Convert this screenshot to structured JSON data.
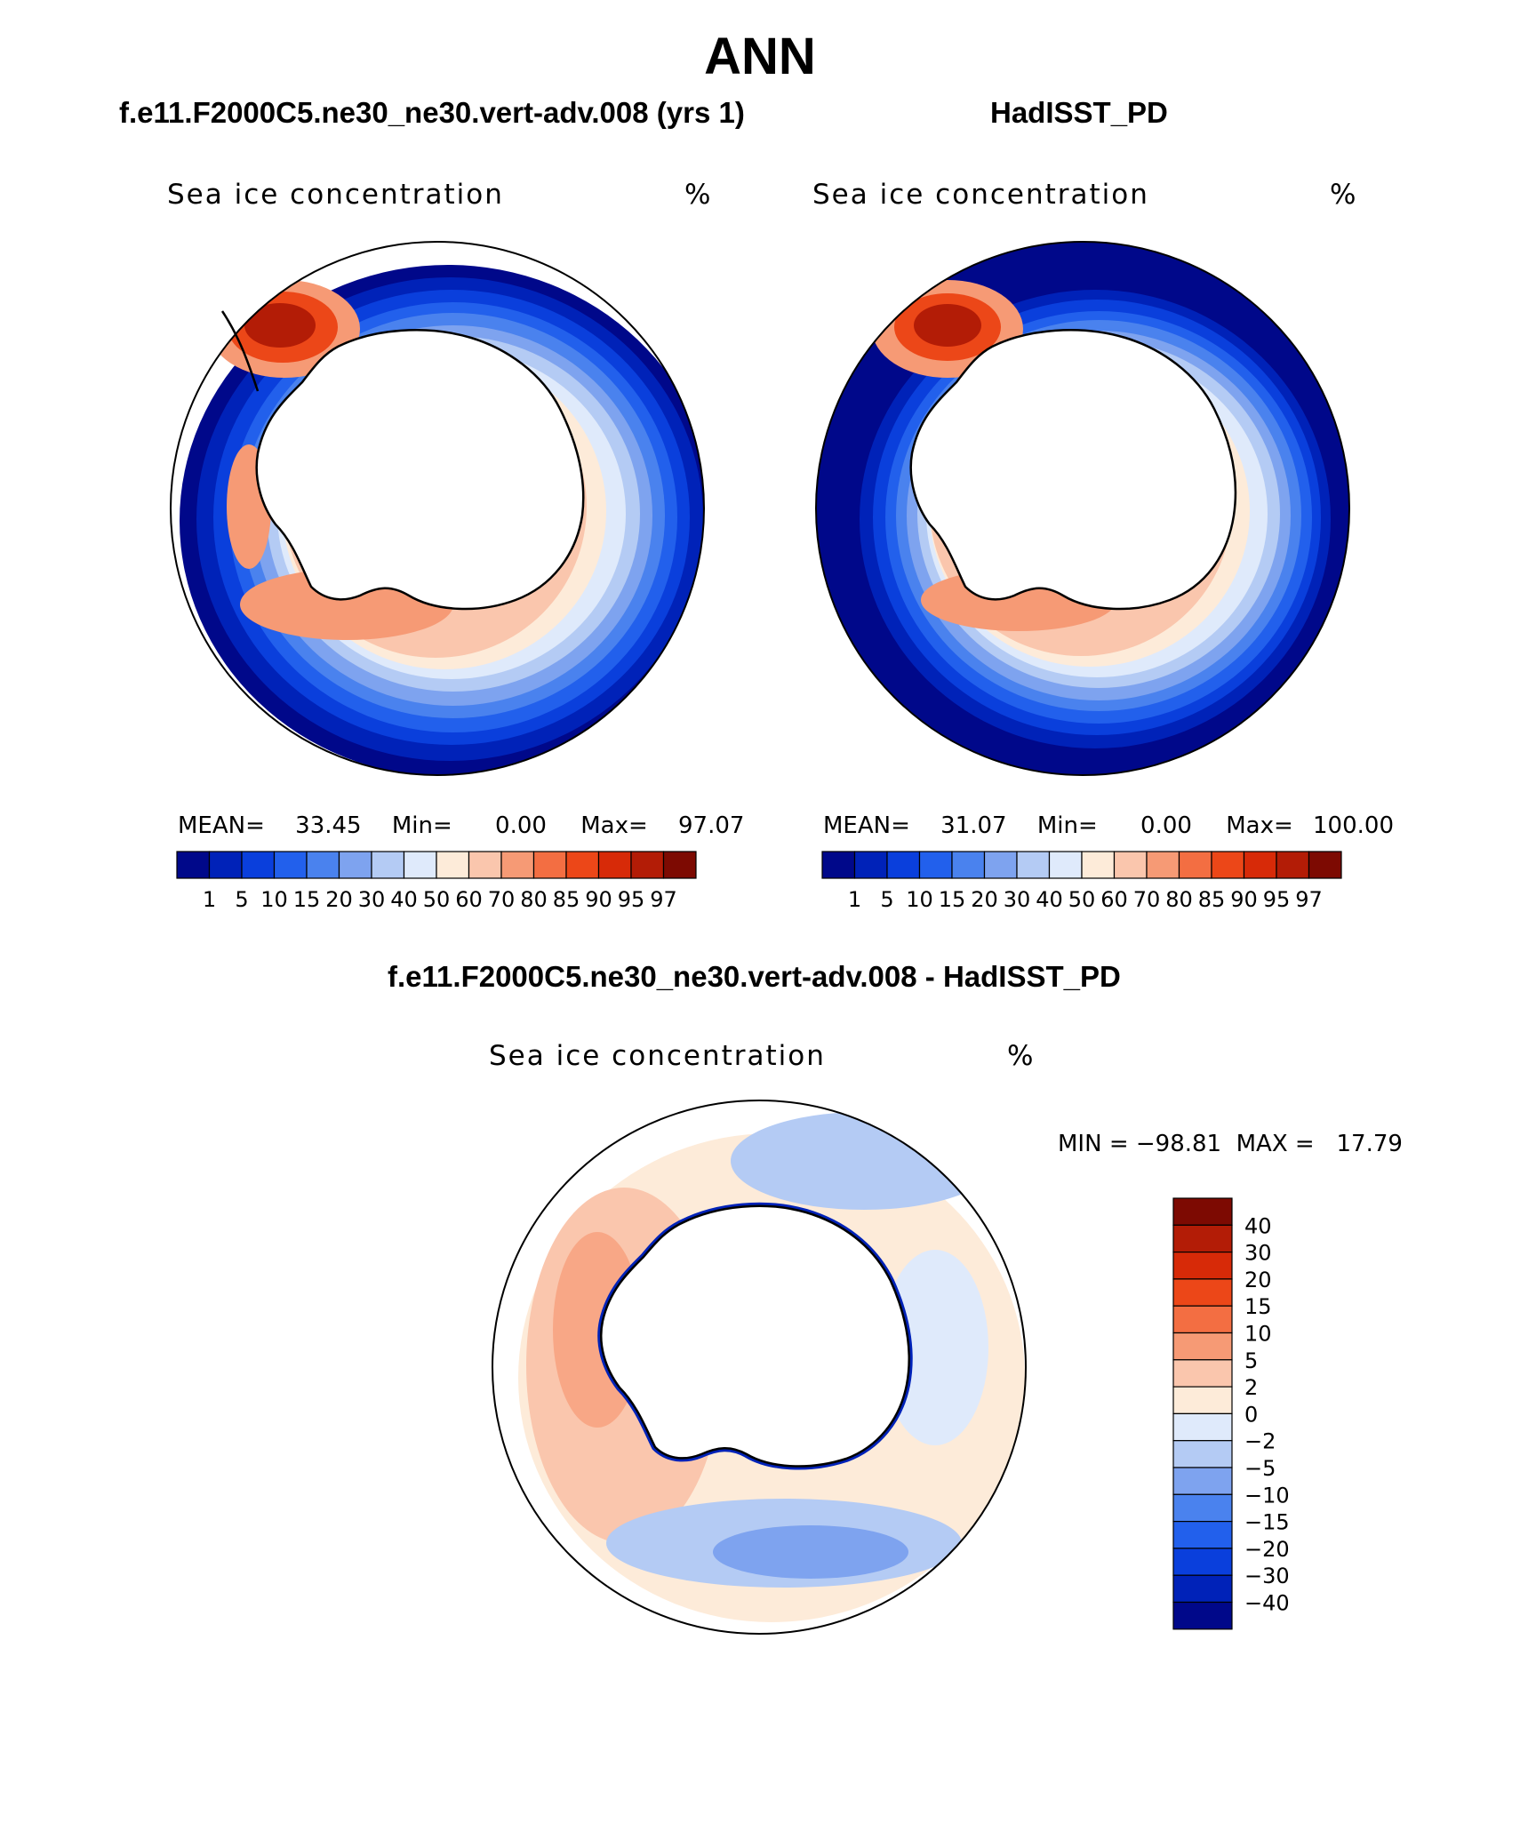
{
  "title": "ANN",
  "panels": [
    {
      "case_title": "f.e11.F2000C5.ne30_ne30.vert-adv.008 (yrs 1)",
      "variable": "Sea ice concentration",
      "units": "%",
      "stats": {
        "mean_label": "MEAN=",
        "mean": "33.45",
        "min_label": "Min=",
        "min": "0.00",
        "max_label": "Max=",
        "max": "97.07"
      }
    },
    {
      "case_title": "HadISST_PD",
      "variable": "Sea ice concentration",
      "units": "%",
      "stats": {
        "mean_label": "MEAN=",
        "mean": "31.07",
        "min_label": "Min=",
        "min": "0.00",
        "max_label": "Max=",
        "max": "100.00"
      }
    }
  ],
  "diff_panel": {
    "case_title": "f.e11.F2000C5.ne30_ne30.vert-adv.008 - HadISST_PD",
    "variable": "Sea ice concentration",
    "units": "%",
    "minmax": "MIN = −98.81  MAX =   17.79"
  },
  "colors": {
    "abs_scale": [
      "#00088a",
      "#0022b8",
      "#0a3fdc",
      "#2260ec",
      "#4a82ee",
      "#7ea3ef",
      "#b4cbf4",
      "#dfeafb",
      "#fdebd9",
      "#fac6ad",
      "#f69a75",
      "#f36e42",
      "#ec4718",
      "#d72a08",
      "#b31c06",
      "#7d0a02"
    ],
    "diff_scale": [
      "#00088a",
      "#0022b8",
      "#0a3fdc",
      "#2260ec",
      "#4a82ee",
      "#7ea3ef",
      "#b4cbf4",
      "#dfeafb",
      "#fdebd9",
      "#fac6ad",
      "#f69a75",
      "#f36e42",
      "#ec4718",
      "#d72a08",
      "#b31c06",
      "#7d0a02"
    ],
    "land": "#ffffff",
    "coast": "#000000"
  },
  "chart_data": [
    {
      "type": "heatmap",
      "projection": "south polar stereographic",
      "title": "Sea ice concentration",
      "units": "%",
      "colorbar": {
        "orientation": "horizontal",
        "levels": [
          "1",
          "5",
          "10",
          "15",
          "20",
          "30",
          "40",
          "50",
          "60",
          "70",
          "80",
          "85",
          "90",
          "95",
          "97"
        ]
      },
      "stats": {
        "mean": 33.45,
        "min": 0.0,
        "max": 97.07
      }
    },
    {
      "type": "heatmap",
      "projection": "south polar stereographic",
      "title": "Sea ice concentration",
      "units": "%",
      "colorbar": {
        "orientation": "horizontal",
        "levels": [
          "1",
          "5",
          "10",
          "15",
          "20",
          "30",
          "40",
          "50",
          "60",
          "70",
          "80",
          "85",
          "90",
          "95",
          "97"
        ]
      },
      "stats": {
        "mean": 31.07,
        "min": 0.0,
        "max": 100.0
      }
    },
    {
      "type": "heatmap",
      "projection": "south polar stereographic",
      "title": "Sea ice concentration",
      "units": "%",
      "colorbar": {
        "orientation": "vertical",
        "levels": [
          "40",
          "30",
          "20",
          "15",
          "10",
          "5",
          "2",
          "0",
          "−2",
          "−5",
          "−10",
          "−15",
          "−20",
          "−30",
          "−40"
        ]
      },
      "stats": {
        "min": -98.81,
        "max": 17.79
      }
    }
  ]
}
